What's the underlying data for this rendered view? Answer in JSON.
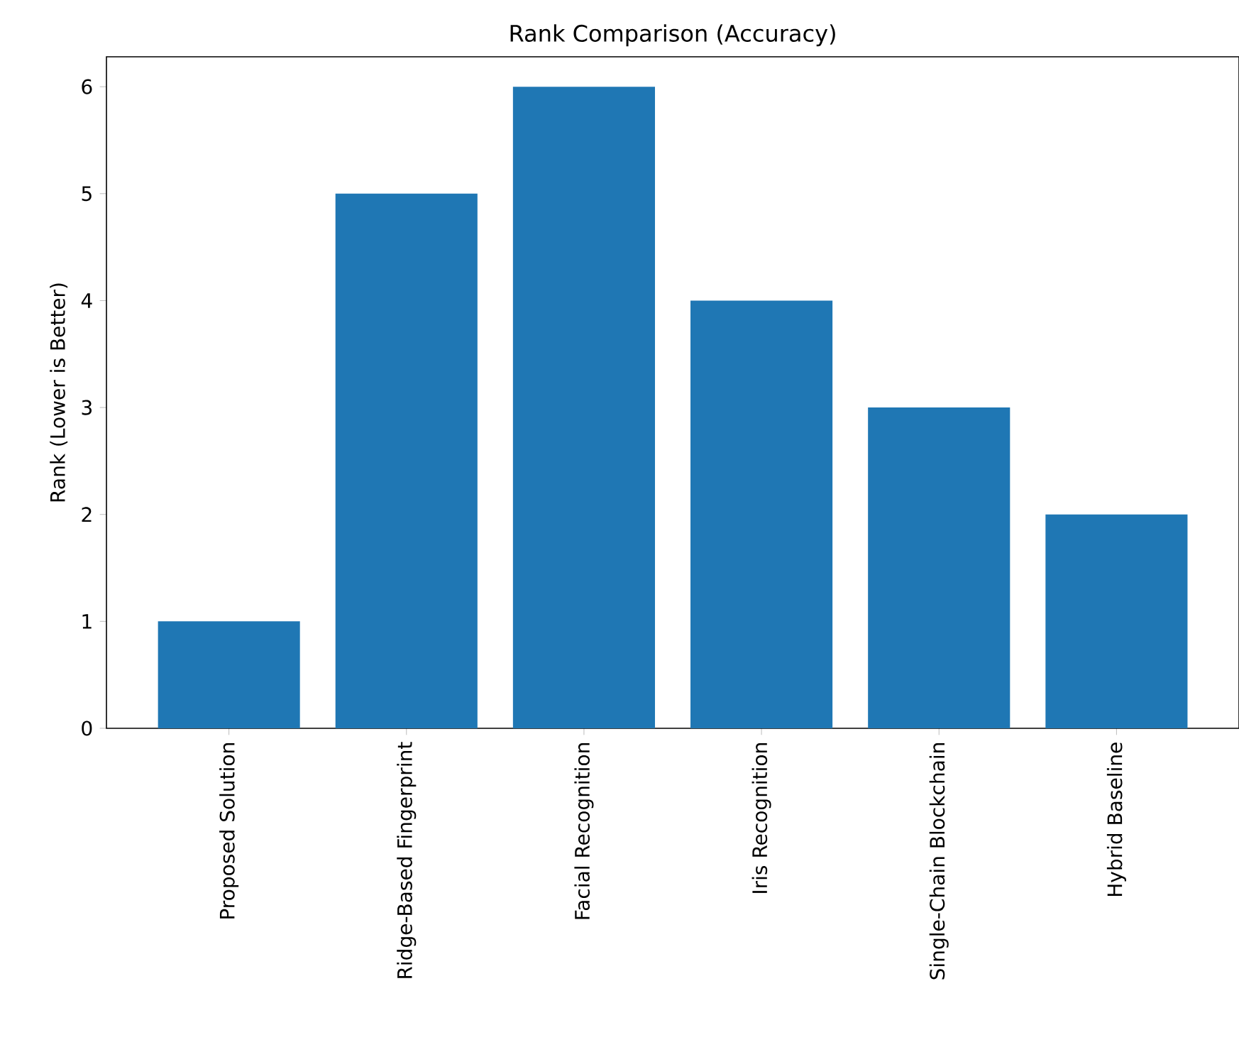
{
  "chart_data": {
    "type": "bar",
    "title": "Rank Comparison (Accuracy)",
    "ylabel": "Rank (Lower is Better)",
    "categories": [
      "Proposed Solution",
      "Ridge-Based Fingerprint",
      "Facial Recognition",
      "Iris Recognition",
      "Single-Chain Blockchain",
      "Hybrid Baseline"
    ],
    "values": [
      1,
      5,
      6,
      4,
      3,
      2
    ],
    "color": "#1f77b4",
    "ylim": [
      0,
      6.28
    ],
    "yticks": [
      0,
      1,
      2,
      3,
      4,
      5,
      6
    ]
  }
}
